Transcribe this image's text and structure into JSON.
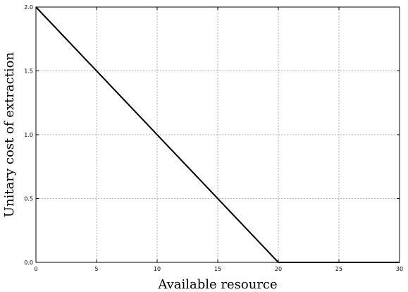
{
  "chart_data": {
    "type": "line",
    "title": "",
    "xlabel": "Available resource",
    "ylabel": "Unitary cost of extraction",
    "xlim": [
      0,
      30
    ],
    "ylim": [
      0,
      2.0
    ],
    "xticks": [
      "0",
      "5",
      "10",
      "15",
      "20",
      "25",
      "30"
    ],
    "yticks": [
      "0.0",
      "0.5",
      "1.0",
      "1.5",
      "2.0"
    ],
    "grid": true,
    "series": [
      {
        "color": "#000000",
        "x": [
          0,
          20,
          30
        ],
        "y": [
          2.0,
          0.0,
          0.0
        ]
      }
    ]
  }
}
